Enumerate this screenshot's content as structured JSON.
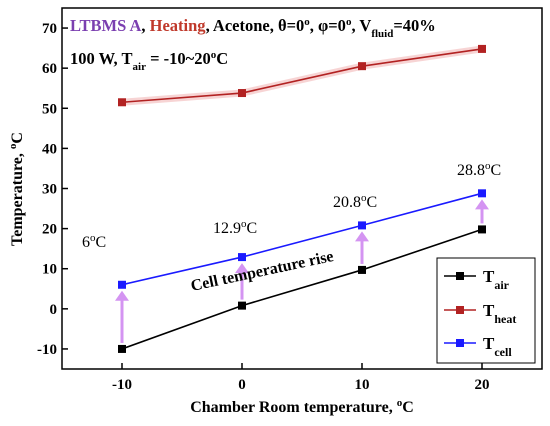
{
  "colors": {
    "air": "#000000",
    "heat": "#b22222",
    "cell": "#1a1aff",
    "arrow": "#d494f2",
    "title_purple": "#7b3fb0",
    "title_red": "#c0392b"
  },
  "title": {
    "part1": "LTBMS A",
    "part2": "Heating",
    "part3": ", Acetone, θ=0",
    "deg": "o",
    "part4": ", φ=0",
    "part5": ", V",
    "fluid_sub": "fluid",
    "part6": "=40%"
  },
  "subtitle": {
    "part1": "100 W, T",
    "air_sub": "air",
    "part2": " = -10~20",
    "deg": "o",
    "part3": "C"
  },
  "annotations": {
    "cell_rise": "Cell  temperature rise",
    "labels": [
      {
        "value": "6",
        "deg": "o",
        "unit": "C"
      },
      {
        "value": "12.9",
        "deg": "o",
        "unit": "C"
      },
      {
        "value": "20.8",
        "deg": "o",
        "unit": "C"
      },
      {
        "value": "28.8",
        "deg": "o",
        "unit": "C"
      }
    ]
  },
  "chart_data": {
    "type": "line",
    "x": [
      -10,
      0,
      10,
      20
    ],
    "series": [
      {
        "name": "T_air",
        "label_main": "T",
        "label_sub": "air",
        "color": "#000000",
        "values": [
          -10,
          0.8,
          9.7,
          19.8
        ]
      },
      {
        "name": "T_heat",
        "label_main": "T",
        "label_sub": "heat",
        "color": "#b22222",
        "values": [
          51.5,
          53.8,
          60.5,
          64.8
        ]
      },
      {
        "name": "T_cell",
        "label_main": "T",
        "label_sub": "cell",
        "color": "#1a1aff",
        "values": [
          6,
          12.9,
          20.8,
          28.8
        ]
      }
    ],
    "xlabel": {
      "text": "Chamber Room temperature, ",
      "deg": "o",
      "unit": "C"
    },
    "ylabel": {
      "text": "Temperature, ",
      "deg": "o",
      "unit": "C"
    },
    "xlim": [
      -15,
      25
    ],
    "ylim": [
      -15,
      75
    ],
    "xticks": [
      -10,
      0,
      10,
      20
    ],
    "xtick_labels": [
      "-10",
      "0",
      "10",
      "20"
    ],
    "yticks": [
      -10,
      0,
      10,
      20,
      30,
      40,
      50,
      60,
      70
    ],
    "ytick_labels": [
      "-10",
      "0",
      "10",
      "20",
      "30",
      "40",
      "50",
      "60",
      "70"
    ],
    "grid": false,
    "legend_position": "bottom-right"
  }
}
